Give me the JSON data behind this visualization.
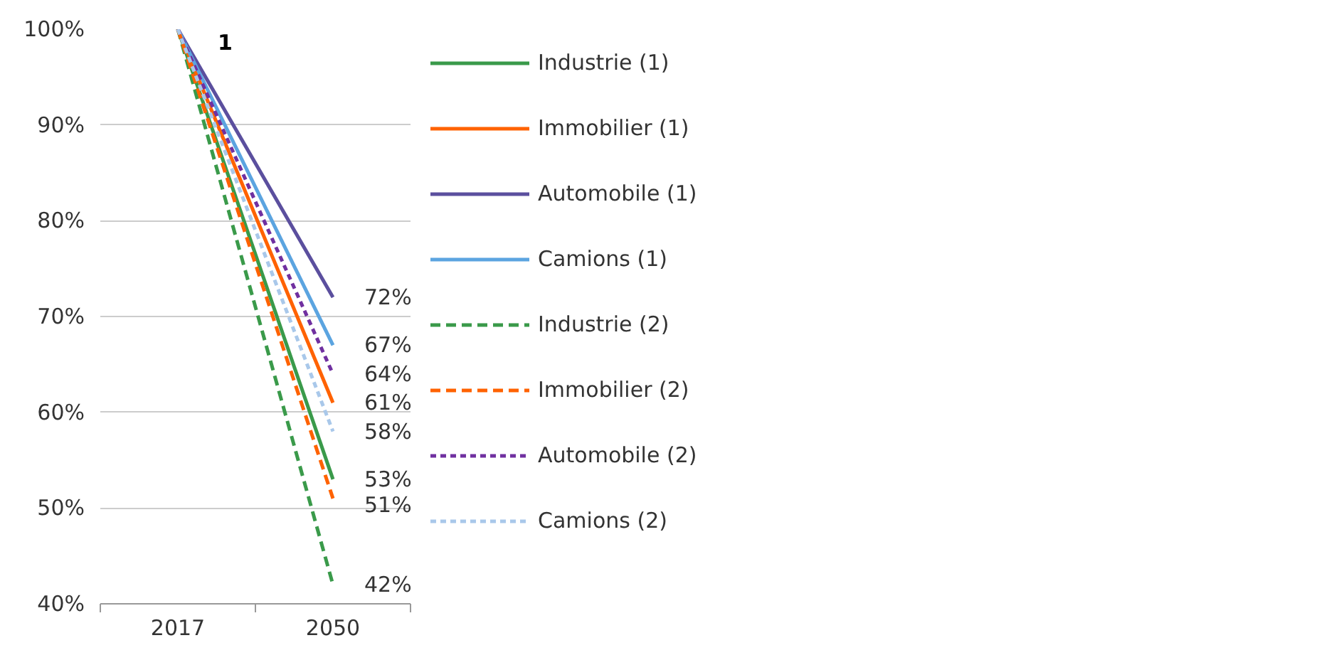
{
  "chart_data": {
    "type": "line",
    "categories": [
      "2017",
      "2050"
    ],
    "ylim": [
      40,
      100
    ],
    "yticks": [
      {
        "value": 40,
        "label": "40%"
      },
      {
        "value": 50,
        "label": "50%"
      },
      {
        "value": 60,
        "label": "60%"
      },
      {
        "value": 70,
        "label": "70%"
      },
      {
        "value": 80,
        "label": "80%"
      },
      {
        "value": 90,
        "label": "90%"
      },
      {
        "value": 100,
        "label": "100%"
      }
    ],
    "grid": "y",
    "legend": "right",
    "annotations": [
      {
        "text": "1",
        "x": "2017",
        "y": 100
      }
    ],
    "series": [
      {
        "name": "Industrie (1)",
        "color": "#3a9a4a",
        "line_style": "solid",
        "values": [
          100,
          53
        ],
        "value_labels": [
          null,
          "53%"
        ]
      },
      {
        "name": "Immobilier (1)",
        "color": "#ff6200",
        "line_style": "solid",
        "values": [
          100,
          61
        ],
        "value_labels": [
          null,
          "61%"
        ]
      },
      {
        "name": "Automobile (1)",
        "color": "#5b4f9e",
        "line_style": "solid",
        "values": [
          100,
          72
        ],
        "value_labels": [
          null,
          "72%"
        ]
      },
      {
        "name": "Camions (1)",
        "color": "#5ba4e0",
        "line_style": "solid",
        "values": [
          100,
          67
        ],
        "value_labels": [
          null,
          "67%"
        ]
      },
      {
        "name": "Industrie (2)",
        "color": "#3a9a4a",
        "line_style": "dashed",
        "values": [
          100,
          42
        ],
        "value_labels": [
          null,
          "42%"
        ]
      },
      {
        "name": "Immobilier (2)",
        "color": "#ff6200",
        "line_style": "dashed",
        "values": [
          100,
          51
        ],
        "value_labels": [
          null,
          "51%"
        ]
      },
      {
        "name": "Automobile (2)",
        "color": "#7030a0",
        "line_style": "dotted",
        "values": [
          100,
          64
        ],
        "value_labels": [
          null,
          "64%"
        ]
      },
      {
        "name": "Camions (2)",
        "color": "#a9c8ea",
        "line_style": "dotted",
        "values": [
          100,
          58
        ],
        "value_labels": [
          null,
          "58%"
        ]
      }
    ]
  }
}
